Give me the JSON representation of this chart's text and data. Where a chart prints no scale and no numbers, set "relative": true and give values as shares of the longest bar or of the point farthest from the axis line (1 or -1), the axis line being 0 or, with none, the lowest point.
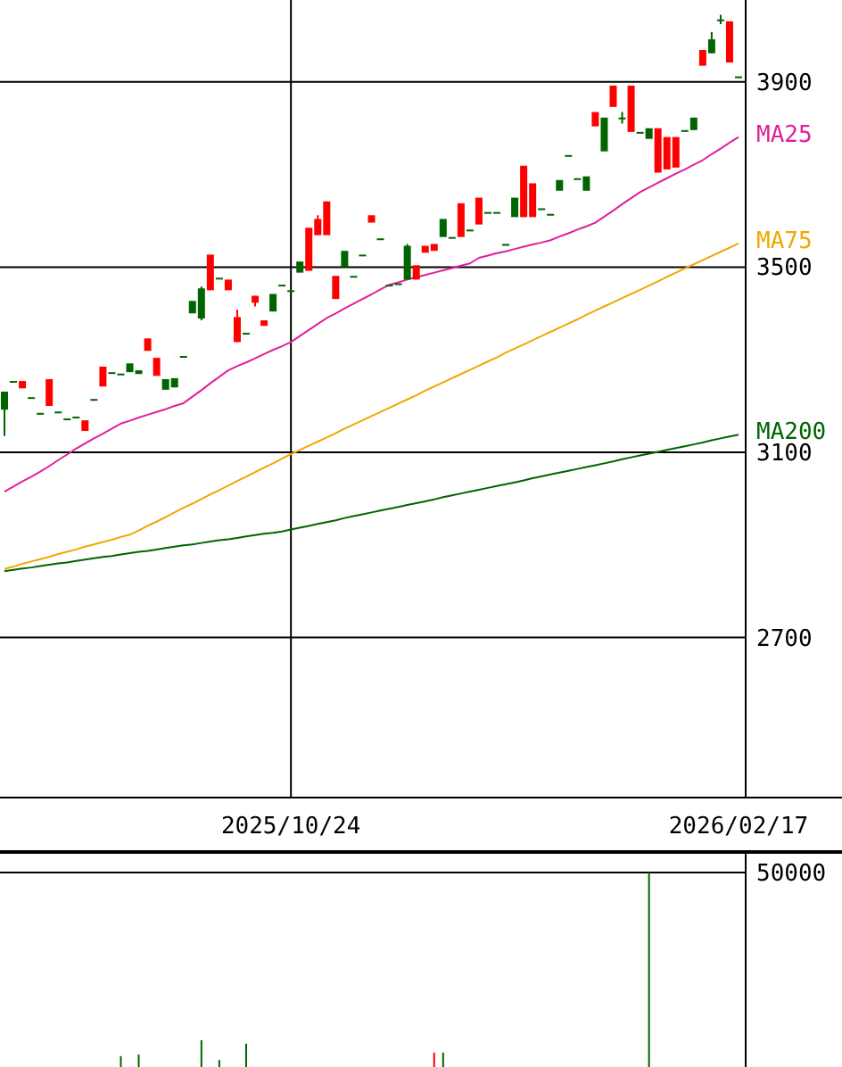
{
  "chart_data": [
    {
      "type": "candlestick",
      "categories": [
        null,
        null,
        null,
        null,
        null,
        null,
        null,
        null,
        null,
        null,
        null,
        null,
        null,
        null,
        null,
        null,
        null,
        null,
        null,
        null,
        null,
        null,
        null,
        null,
        null,
        null,
        null,
        null,
        null,
        null,
        null,
        null,
        "2025/10/24",
        null,
        null,
        null,
        null,
        null,
        null,
        null,
        null,
        null,
        null,
        null,
        null,
        null,
        null,
        null,
        null,
        null,
        null,
        null,
        null,
        null,
        null,
        null,
        null,
        null,
        null,
        null,
        null,
        null,
        null,
        null,
        null,
        null,
        null,
        null,
        null,
        null,
        null,
        null,
        null,
        null,
        null,
        null,
        null,
        null,
        null,
        null,
        null,
        null,
        "2026/02/17"
      ],
      "ohlc": [
        [
          3231,
          3231,
          3135,
          3192
        ],
        [
          3254,
          3254,
          3254,
          3254
        ],
        [
          3238,
          3254,
          3238,
          3254
        ],
        [
          3219,
          3219,
          3219,
          3219
        ],
        [
          3185,
          3185,
          3185,
          3185
        ],
        [
          3200,
          3258,
          3200,
          3258
        ],
        [
          3188,
          3188,
          3188,
          3188
        ],
        [
          3173,
          3173,
          3173,
          3173
        ],
        [
          3177,
          3177,
          3177,
          3177
        ],
        [
          3146,
          3169,
          3146,
          3169
        ],
        [
          3215,
          3215,
          3215,
          3215
        ],
        [
          3242,
          3285,
          3242,
          3285
        ],
        [
          3273,
          3273,
          3273,
          3273
        ],
        [
          3270,
          3270,
          3270,
          3270
        ],
        [
          3292,
          3292,
          3273,
          3273
        ],
        [
          3277,
          3277,
          3269,
          3269
        ],
        [
          3319,
          3346,
          3319,
          3346
        ],
        [
          3265,
          3304,
          3265,
          3304
        ],
        [
          3258,
          3258,
          3235,
          3235
        ],
        [
          3260,
          3260,
          3240,
          3240
        ],
        [
          3308,
          3308,
          3308,
          3308
        ],
        [
          3427,
          3427,
          3400,
          3400
        ],
        [
          3454,
          3458,
          3385,
          3389
        ],
        [
          3450,
          3527,
          3450,
          3527
        ],
        [
          3477,
          3477,
          3477,
          3477
        ],
        [
          3450,
          3473,
          3450,
          3473
        ],
        [
          3338,
          3408,
          3338,
          3392
        ],
        [
          3358,
          3358,
          3358,
          3358
        ],
        [
          3423,
          3438,
          3415,
          3438
        ],
        [
          3373,
          3385,
          3373,
          3385
        ],
        [
          3442,
          3442,
          3404,
          3404
        ],
        [
          3462,
          3462,
          3462,
          3462
        ],
        [
          3450,
          3450,
          3450,
          3450
        ],
        [
          3512,
          3512,
          3488,
          3488
        ],
        [
          3492,
          3585,
          3492,
          3585
        ],
        [
          3569,
          3612,
          3569,
          3604
        ],
        [
          3569,
          3642,
          3569,
          3642
        ],
        [
          3431,
          3481,
          3431,
          3481
        ],
        [
          3535,
          3535,
          3500,
          3500
        ],
        [
          3481,
          3481,
          3481,
          3481
        ],
        [
          3527,
          3527,
          3527,
          3527
        ],
        [
          3596,
          3612,
          3596,
          3612
        ],
        [
          3562,
          3562,
          3562,
          3562
        ],
        [
          3462,
          3462,
          3462,
          3462
        ],
        [
          3465,
          3465,
          3465,
          3465
        ],
        [
          3546,
          3550,
          3473,
          3473
        ],
        [
          3473,
          3504,
          3473,
          3504
        ],
        [
          3531,
          3546,
          3531,
          3546
        ],
        [
          3535,
          3550,
          3535,
          3550
        ],
        [
          3604,
          3604,
          3565,
          3565
        ],
        [
          3565,
          3565,
          3565,
          3565
        ],
        [
          3565,
          3638,
          3565,
          3638
        ],
        [
          3581,
          3581,
          3581,
          3581
        ],
        [
          3592,
          3650,
          3592,
          3650
        ],
        [
          3619,
          3619,
          3619,
          3619
        ],
        [
          3619,
          3619,
          3619,
          3619
        ],
        [
          3550,
          3550,
          3546,
          3546
        ],
        [
          3650,
          3650,
          3608,
          3608
        ],
        [
          3608,
          3719,
          3608,
          3719
        ],
        [
          3608,
          3681,
          3608,
          3681
        ],
        [
          3627,
          3627,
          3627,
          3627
        ],
        [
          3615,
          3615,
          3615,
          3615
        ],
        [
          3688,
          3688,
          3665,
          3665
        ],
        [
          3742,
          3742,
          3742,
          3742
        ],
        [
          3692,
          3692,
          3692,
          3692
        ],
        [
          3696,
          3696,
          3665,
          3665
        ],
        [
          3804,
          3835,
          3804,
          3835
        ],
        [
          3823,
          3823,
          3750,
          3750
        ],
        [
          3846,
          3892,
          3846,
          3892
        ],
        [
          3823,
          3835,
          3810,
          3823
        ],
        [
          3792,
          3892,
          3792,
          3892
        ],
        [
          3792,
          3792,
          3792,
          3792
        ],
        [
          3800,
          3800,
          3777,
          3777
        ],
        [
          3704,
          3800,
          3704,
          3800
        ],
        [
          3711,
          3781,
          3711,
          3781
        ],
        [
          3715,
          3781,
          3715,
          3781
        ],
        [
          3796,
          3796,
          3796,
          3796
        ],
        [
          3823,
          3823,
          3796,
          3796
        ],
        [
          3935,
          3969,
          3935,
          3969
        ],
        [
          3992,
          4008,
          3962,
          3962
        ],
        [
          4035,
          4045,
          4025,
          4035
        ],
        [
          3942,
          4031,
          3942,
          4031
        ],
        [
          3912,
          3912,
          3912,
          3912
        ]
      ],
      "colors": [
        "#006400",
        "#006400",
        "#ff0000",
        "#006400",
        "#006400",
        "#ff0000",
        "#006400",
        "#006400",
        "#006400",
        "#ff0000",
        "#006400",
        "#ff0000",
        "#006400",
        "#006400",
        "#006400",
        "#006400",
        "#ff0000",
        "#ff0000",
        "#006400",
        "#006400",
        "#006400",
        "#006400",
        "#006400",
        "#ff0000",
        "#006400",
        "#ff0000",
        "#ff0000",
        "#006400",
        "#ff0000",
        "#ff0000",
        "#006400",
        "#006400",
        "#006400",
        "#006400",
        "#ff0000",
        "#ff0000",
        "#ff0000",
        "#ff0000",
        "#006400",
        "#006400",
        "#006400",
        "#ff0000",
        "#006400",
        "#006400",
        "#006400",
        "#006400",
        "#ff0000",
        "#ff0000",
        "#ff0000",
        "#006400",
        "#006400",
        "#ff0000",
        "#006400",
        "#ff0000",
        "#006400",
        "#006400",
        "#006400",
        "#006400",
        "#ff0000",
        "#ff0000",
        "#006400",
        "#006400",
        "#006400",
        "#006400",
        "#006400",
        "#006400",
        "#ff0000",
        "#006400",
        "#ff0000",
        "#006400",
        "#ff0000",
        "#006400",
        "#006400",
        "#ff0000",
        "#ff0000",
        "#ff0000",
        "#006400",
        "#006400",
        "#ff0000",
        "#006400",
        "#006400",
        "#ff0000",
        "#006400"
      ],
      "series": [
        {
          "name": "MA25",
          "type": "line",
          "color": "#e0209a",
          "values": [
            3015,
            3026,
            3037,
            3047,
            3058,
            3070,
            3083,
            3095,
            3108,
            3119,
            3130,
            3140,
            3151,
            3162,
            3168,
            3175,
            3181,
            3187,
            3193,
            3200,
            3206,
            3220,
            3234,
            3249,
            3263,
            3277,
            3286,
            3294,
            3303,
            3312,
            3321,
            3329,
            3338,
            3351,
            3364,
            3377,
            3390,
            3400,
            3411,
            3421,
            3431,
            3441,
            3452,
            3462,
            3467,
            3473,
            3478,
            3483,
            3488,
            3493,
            3498,
            3503,
            3508,
            3520,
            3525,
            3530,
            3534,
            3539,
            3544,
            3549,
            3553,
            3558,
            3566,
            3573,
            3581,
            3588,
            3596,
            3609,
            3622,
            3636,
            3649,
            3662,
            3672,
            3682,
            3692,
            3702,
            3711,
            3721,
            3731,
            3744,
            3756,
            3769,
            3781
          ]
        },
        {
          "name": "MA75",
          "type": "line",
          "color": "#f0a800",
          "values": [
            2848,
            2853,
            2859,
            2864,
            2869,
            2874,
            2880,
            2885,
            2890,
            2896,
            2901,
            2906,
            2911,
            2917,
            2922,
            2931,
            2941,
            2950,
            2960,
            2970,
            2980,
            2989,
            2999,
            3009,
            3018,
            3028,
            3038,
            3047,
            3057,
            3067,
            3076,
            3086,
            3096,
            3105,
            3114,
            3123,
            3132,
            3141,
            3151,
            3160,
            3169,
            3178,
            3187,
            3196,
            3205,
            3214,
            3223,
            3233,
            3242,
            3251,
            3260,
            3269,
            3278,
            3287,
            3296,
            3305,
            3315,
            3324,
            3333,
            3342,
            3351,
            3360,
            3369,
            3378,
            3387,
            3397,
            3406,
            3415,
            3424,
            3433,
            3442,
            3451,
            3460,
            3469,
            3479,
            3488,
            3497,
            3506,
            3515,
            3524,
            3533,
            3542,
            3551
          ]
        },
        {
          "name": "MA200",
          "type": "line",
          "color": "#006400",
          "values": [
            2843,
            2846,
            2849,
            2851,
            2854,
            2857,
            2860,
            2862,
            2865,
            2868,
            2871,
            2874,
            2876,
            2879,
            2882,
            2885,
            2887,
            2890,
            2893,
            2896,
            2899,
            2901,
            2904,
            2907,
            2910,
            2912,
            2915,
            2918,
            2921,
            2924,
            2926,
            2929,
            2933,
            2937,
            2941,
            2945,
            2949,
            2953,
            2958,
            2962,
            2966,
            2970,
            2974,
            2978,
            2982,
            2986,
            2990,
            2994,
            2998,
            3003,
            3007,
            3011,
            3015,
            3019,
            3023,
            3027,
            3031,
            3035,
            3039,
            3044,
            3048,
            3052,
            3056,
            3060,
            3064,
            3068,
            3072,
            3076,
            3080,
            3085,
            3089,
            3093,
            3097,
            3101,
            3105,
            3109,
            3113,
            3117,
            3121,
            3126,
            3130,
            3134,
            3138
          ]
        }
      ],
      "ylim": [
        2354,
        4077
      ],
      "yticks": [
        2700,
        3100,
        3500,
        3900
      ],
      "grid": true
    },
    {
      "type": "bar",
      "relative": true,
      "categories": [
        null,
        null,
        null,
        null,
        null,
        null,
        null,
        null,
        null,
        null,
        null,
        null,
        null,
        null,
        null,
        null,
        null,
        null,
        null,
        null,
        null,
        null,
        null,
        null,
        null,
        null,
        null,
        null,
        null,
        null,
        null,
        null,
        null,
        null,
        null,
        null,
        null,
        null,
        null,
        null,
        null,
        null,
        null,
        null,
        null,
        null,
        null,
        null,
        null,
        null,
        null,
        null,
        null,
        null,
        null,
        null,
        null,
        null,
        null,
        null,
        null,
        null,
        null,
        null,
        null,
        null,
        null,
        null,
        null,
        null,
        null,
        null,
        null,
        null,
        null,
        null,
        null,
        null,
        null,
        null,
        null,
        null,
        null
      ],
      "values": [
        null,
        null,
        null,
        null,
        null,
        null,
        null,
        null,
        null,
        null,
        null,
        null,
        null,
        0.056,
        null,
        0.064,
        null,
        null,
        null,
        null,
        null,
        null,
        0.138,
        null,
        0.036,
        null,
        null,
        0.12,
        null,
        null,
        null,
        null,
        null,
        null,
        null,
        null,
        null,
        null,
        null,
        null,
        null,
        null,
        null,
        null,
        null,
        null,
        null,
        null,
        0.074,
        0.074,
        null,
        null,
        null,
        null,
        null,
        null,
        null,
        null,
        null,
        null,
        null,
        null,
        null,
        null,
        null,
        null,
        null,
        null,
        null,
        null,
        null,
        null,
        1,
        null,
        null,
        null,
        null,
        null,
        null,
        null,
        null,
        null,
        null
      ],
      "colors": [
        null,
        null,
        null,
        null,
        null,
        null,
        null,
        null,
        null,
        null,
        null,
        null,
        null,
        "#006400",
        null,
        "#006400",
        null,
        null,
        null,
        null,
        null,
        null,
        "#006400",
        null,
        "#006400",
        null,
        null,
        "#006400",
        null,
        null,
        null,
        null,
        null,
        null,
        null,
        null,
        null,
        null,
        null,
        null,
        null,
        null,
        null,
        null,
        null,
        null,
        null,
        null,
        "#ff0000",
        "#006400",
        null,
        null,
        null,
        null,
        null,
        null,
        null,
        null,
        null,
        null,
        null,
        null,
        null,
        null,
        null,
        null,
        null,
        null,
        null,
        null,
        null,
        null,
        "#006400",
        null,
        null,
        null,
        null,
        null,
        null,
        null,
        null,
        null,
        null
      ],
      "ref_lines": [
        {
          "axis": "y",
          "value": 1
        }
      ],
      "annotations": [
        "50000"
      ]
    }
  ]
}
